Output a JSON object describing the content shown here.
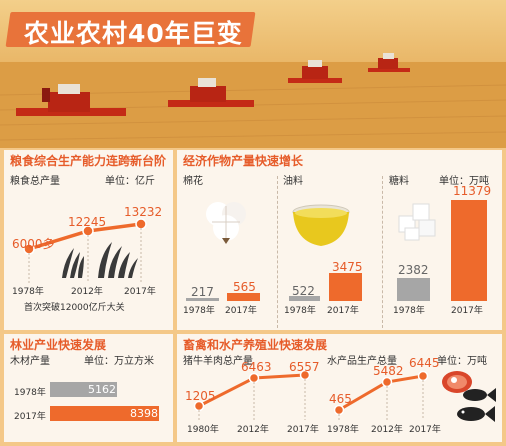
{
  "title": "农业农村40年巨变",
  "grain": {
    "heading": "粮食综合生产能力连跨新台阶",
    "label": "粮食总产量",
    "unit": "单位：亿斤",
    "points": [
      {
        "year": "1978年",
        "value": "6000多"
      },
      {
        "year": "2012年",
        "value": "12245"
      },
      {
        "year": "2017年",
        "value": "13232"
      }
    ],
    "note": "首次突破12000亿斤大关"
  },
  "crops": {
    "heading": "经济作物产量快速增长",
    "unit": "单位：万吨",
    "items": [
      {
        "name": "棉花",
        "v1978": "217",
        "v2017": "565"
      },
      {
        "name": "油料",
        "v1978": "522",
        "v2017": "3475"
      },
      {
        "name": "糖料",
        "v1978": "2382",
        "v2017": "11379"
      }
    ],
    "year_a": "1978年",
    "year_b": "2017年"
  },
  "forestry": {
    "heading": "林业产业快速发展",
    "label": "木材产量",
    "unit": "单位：万立方米",
    "rows": [
      {
        "year": "1978年",
        "value": "5162"
      },
      {
        "year": "2017年",
        "value": "8398"
      }
    ]
  },
  "livestock": {
    "heading": "畜禽和水产养殖业快速发展",
    "unit": "单位：万吨",
    "meat": {
      "label": "猪牛羊肉总产量",
      "points": [
        {
          "year": "1980年",
          "value": "1205"
        },
        {
          "year": "2012年",
          "value": "6463"
        },
        {
          "year": "2017年",
          "value": "6557"
        }
      ]
    },
    "aqua": {
      "label": "水产品生产总量",
      "points": [
        {
          "year": "1978年",
          "value": "465"
        },
        {
          "year": "2012年",
          "value": "5482"
        },
        {
          "year": "2017年",
          "value": "6445"
        }
      ]
    }
  },
  "colors": {
    "accent": "#ee6a2c",
    "gray": "#a6a6a6",
    "heading": "#e65c2a"
  },
  "icons": [
    "harvester-icon",
    "wheat-icon",
    "cotton-icon",
    "oil-bowl-icon",
    "sugar-cubes-icon",
    "meat-icon",
    "fish-icon"
  ]
}
